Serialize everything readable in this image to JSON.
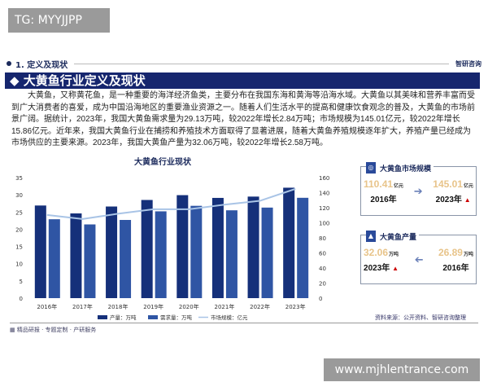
{
  "watermark_top": "TG: MYYJJPP",
  "watermark_bottom": "www.mjhlentrance.com",
  "section": {
    "label": "1. 定义及现状",
    "logo": "智研咨询"
  },
  "title": "大黄鱼行业定义及现状",
  "paragraph": "大黄鱼，又称黄花鱼，是一种重要的海洋经济鱼类，主要分布在我国东海和黄海等沿海水域。大黄鱼以其美味和营养丰富而受到广大消费者的喜爱，成为中国沿海地区的重要渔业资源之一。随着人们生活水平的提高和健康饮食观念的普及，大黄鱼的市场前景广阔。据统计，2023年，我国大黄鱼需求量为29.13万吨，较2022年增长2.84万吨；市场规模为145.01亿元，较2022年增长15.86亿元。近年来，我国大黄鱼行业在捕捞和养殖技术方面取得了显著进展，随着大黄鱼养殖规模逐年扩大，养殖产量已经成为市场供应的主要来源。2023年，我国大黄鱼产量为32.06万吨，较2022年增长2.58万吨。",
  "chart_data": {
    "type": "bar",
    "title": "大黄鱼行业现状",
    "categories": [
      "2016年",
      "2017年",
      "2018年",
      "2019年",
      "2020年",
      "2021年",
      "2022年",
      "2023年"
    ],
    "series": [
      {
        "name": "产量：万吨",
        "type": "bar",
        "axis": "left",
        "color": "#15307a",
        "values": [
          26.89,
          24.6,
          26.6,
          28.5,
          29.9,
          29.1,
          29.48,
          32.06
        ]
      },
      {
        "name": "需求量：万吨",
        "type": "bar",
        "axis": "left",
        "color": "#2f55a4",
        "values": [
          22.9,
          21.4,
          22.7,
          25.2,
          26.8,
          25.5,
          26.29,
          29.13
        ]
      },
      {
        "name": "市场规模：亿元",
        "type": "line",
        "axis": "right",
        "color": "#a9c4e6",
        "values": [
          110.41,
          105,
          112,
          118,
          118,
          124,
          129.15,
          145.01
        ]
      }
    ],
    "yleft": {
      "range": [
        0,
        35
      ],
      "ticks": [
        "0",
        "5",
        "10",
        "15",
        "20",
        "25",
        "30",
        "35"
      ]
    },
    "yright": {
      "range": [
        0,
        160
      ],
      "ticks": [
        "0",
        "20",
        "40",
        "60",
        "80",
        "100",
        "120",
        "140",
        "160"
      ]
    },
    "legend": "bottom",
    "grid": false
  },
  "cards": [
    {
      "title": "大黄鱼市场规模",
      "from_value": "110.41",
      "from_unit": "亿元",
      "from_year": "2016年",
      "to_value": "145.01",
      "to_unit": "亿元",
      "to_year": "2023年"
    },
    {
      "title": "大黄鱼产量",
      "from_value": "26.89",
      "from_unit": "万吨",
      "from_year": "2016年",
      "to_value": "32.06",
      "to_unit": "万吨",
      "to_year": "2023年"
    }
  ],
  "footer": "精品研报 · 专题定制 · 产研服务",
  "source": "资料来源：公开资料、智研咨询整理"
}
